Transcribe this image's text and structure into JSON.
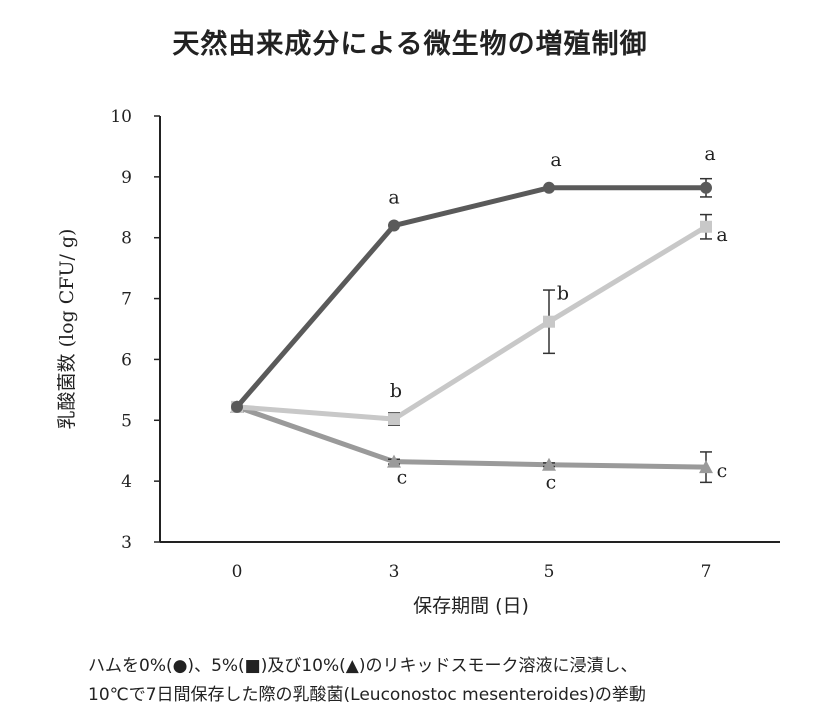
{
  "title": "天然由来成分による微生物の増殖制御",
  "caption": {
    "line1": "ハムを0%(●)、5%(■)及び10%(▲)のリキッドスモーク溶液に浸漬し、",
    "line2": "10℃で7日間保存した際の乳酸菌(Leuconostoc mesenteroides)の挙動"
  },
  "chart_data": {
    "type": "line",
    "title": "天然由来成分による微生物の増殖制御",
    "xlabel": "保存期間 (日)",
    "ylabel": "乳酸菌数 (log CFU/ g)",
    "x": [
      0,
      3,
      5,
      7
    ],
    "xticks": [
      "0",
      "3",
      "5",
      "7"
    ],
    "ylim": [
      3,
      10
    ],
    "yticks": [
      "3",
      "4",
      "5",
      "6",
      "7",
      "8",
      "9",
      "10"
    ],
    "grid": false,
    "series": [
      {
        "name": "0%(●)",
        "marker": "circle",
        "color": "#5a5a5a",
        "values": [
          5.22,
          8.2,
          8.82,
          8.82
        ],
        "error": [
          0,
          0,
          0,
          0.15
        ],
        "labels": [
          "",
          "a",
          "a",
          "a"
        ]
      },
      {
        "name": "5%(■)",
        "marker": "square",
        "color": "#c8c8c8",
        "values": [
          5.22,
          5.02,
          6.62,
          8.18
        ],
        "error": [
          0,
          0.1,
          0.52,
          0.2
        ],
        "labels": [
          "",
          "b",
          "b",
          "a"
        ]
      },
      {
        "name": "10%(▲)",
        "marker": "triangle",
        "color": "#9a9a9a",
        "values": [
          5.22,
          4.32,
          4.27,
          4.23
        ],
        "error": [
          0,
          0.04,
          0.03,
          0.25
        ],
        "labels": [
          "",
          "c",
          "c",
          "c"
        ]
      }
    ]
  }
}
